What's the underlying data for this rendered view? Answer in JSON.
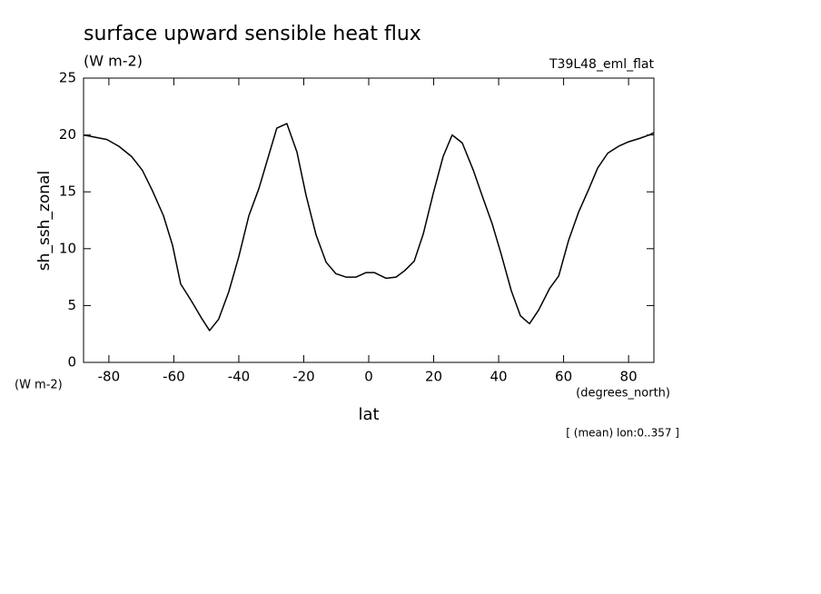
{
  "chart_data": {
    "type": "line",
    "title": "surface upward sensible heat flux",
    "subtitle": "(W m-2)",
    "dataset": "T39L48_eml_flat",
    "ylabel": "sh_ssh_zonal",
    "yunits": "(W m-2)",
    "xunits": "(degrees_north)",
    "xlabel": "lat",
    "annotation": "[ (mean) lon:0..357 ]",
    "xlim": [
      -87.8,
      87.8
    ],
    "ylim": [
      0,
      25
    ],
    "xticks": [
      -80,
      -60,
      -40,
      -20,
      0,
      20,
      40,
      60,
      80
    ],
    "yticks": [
      0,
      5,
      10,
      15,
      20,
      25
    ],
    "x": [
      -87.8,
      -84.2,
      -80.6,
      -76.9,
      -73.0,
      -69.7,
      -66.6,
      -63.2,
      -60.4,
      -57.9,
      -54.8,
      -51.5,
      -49.0,
      -46.2,
      -43.1,
      -40.0,
      -36.9,
      -33.8,
      -31.0,
      -28.3,
      -25.2,
      -22.1,
      -19.3,
      -16.2,
      -13.1,
      -10.1,
      -7.0,
      -3.9,
      -0.8,
      1.7,
      5.3,
      8.4,
      11.2,
      14.0,
      16.8,
      19.9,
      22.9,
      25.7,
      28.8,
      32.2,
      35.0,
      38.0,
      40.8,
      43.9,
      46.7,
      49.5,
      52.3,
      55.7,
      58.5,
      61.5,
      64.6,
      67.7,
      70.5,
      73.6,
      76.9,
      80.0,
      83.4,
      86.4,
      87.8
    ],
    "series": [
      {
        "name": "sh_ssh_zonal",
        "color": "#000000",
        "values": [
          20.0,
          19.8,
          19.6,
          19.0,
          18.1,
          16.9,
          15.1,
          12.9,
          10.3,
          6.9,
          5.5,
          3.9,
          2.8,
          3.8,
          6.2,
          9.3,
          12.9,
          15.3,
          18.0,
          20.6,
          21.0,
          18.5,
          14.7,
          11.2,
          8.8,
          7.8,
          7.5,
          7.5,
          7.9,
          7.9,
          7.4,
          7.5,
          8.1,
          8.9,
          11.3,
          14.9,
          18.1,
          20.0,
          19.3,
          16.9,
          14.6,
          12.2,
          9.5,
          6.3,
          4.1,
          3.4,
          4.6,
          6.5,
          7.6,
          10.7,
          13.2,
          15.2,
          17.1,
          18.4,
          19.0,
          19.4,
          19.7,
          20.0,
          20.2
        ]
      }
    ]
  }
}
